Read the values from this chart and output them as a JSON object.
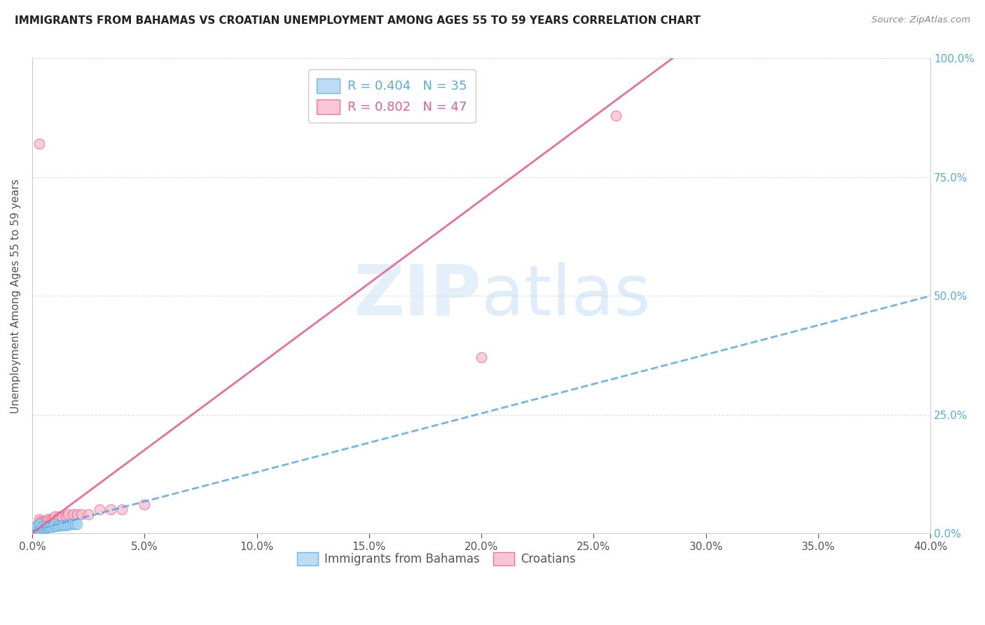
{
  "title": "IMMIGRANTS FROM BAHAMAS VS CROATIAN UNEMPLOYMENT AMONG AGES 55 TO 59 YEARS CORRELATION CHART",
  "source": "Source: ZipAtlas.com",
  "ylabel_label": "Unemployment Among Ages 55 to 59 years",
  "xlim": [
    0.0,
    0.4
  ],
  "ylim": [
    0.0,
    1.0
  ],
  "watermark_zip": "ZIP",
  "watermark_atlas": "atlas",
  "legend_blue_R": "R = 0.404",
  "legend_blue_N": "N = 35",
  "legend_pink_R": "R = 0.802",
  "legend_pink_N": "N = 47",
  "blue_color": "#aad4f0",
  "pink_color": "#f9b8cb",
  "blue_edge_color": "#5aaae0",
  "pink_edge_color": "#e8608a",
  "blue_line_color": "#5aaae0",
  "pink_line_color": "#e8608a",
  "blue_scatter": [
    [
      0.0005,
      0.005
    ],
    [
      0.0008,
      0.008
    ],
    [
      0.001,
      0.01
    ],
    [
      0.001,
      0.005
    ],
    [
      0.0015,
      0.003
    ],
    [
      0.002,
      0.005
    ],
    [
      0.002,
      0.01
    ],
    [
      0.002,
      0.015
    ],
    [
      0.003,
      0.005
    ],
    [
      0.003,
      0.008
    ],
    [
      0.003,
      0.012
    ],
    [
      0.003,
      0.02
    ],
    [
      0.004,
      0.008
    ],
    [
      0.004,
      0.012
    ],
    [
      0.004,
      0.015
    ],
    [
      0.005,
      0.01
    ],
    [
      0.005,
      0.015
    ],
    [
      0.006,
      0.01
    ],
    [
      0.006,
      0.015
    ],
    [
      0.007,
      0.012
    ],
    [
      0.007,
      0.015
    ],
    [
      0.008,
      0.013
    ],
    [
      0.009,
      0.014
    ],
    [
      0.01,
      0.015
    ],
    [
      0.01,
      0.02
    ],
    [
      0.011,
      0.015
    ],
    [
      0.012,
      0.016
    ],
    [
      0.013,
      0.017
    ],
    [
      0.014,
      0.016
    ],
    [
      0.015,
      0.017
    ],
    [
      0.016,
      0.018
    ],
    [
      0.017,
      0.019
    ],
    [
      0.018,
      0.02
    ],
    [
      0.019,
      0.019
    ],
    [
      0.02,
      0.02
    ]
  ],
  "pink_scatter": [
    [
      0.0005,
      0.002
    ],
    [
      0.001,
      0.005
    ],
    [
      0.001,
      0.008
    ],
    [
      0.001,
      0.01
    ],
    [
      0.0015,
      0.005
    ],
    [
      0.002,
      0.008
    ],
    [
      0.002,
      0.01
    ],
    [
      0.002,
      0.015
    ],
    [
      0.003,
      0.005
    ],
    [
      0.003,
      0.01
    ],
    [
      0.003,
      0.015
    ],
    [
      0.003,
      0.02
    ],
    [
      0.003,
      0.025
    ],
    [
      0.003,
      0.03
    ],
    [
      0.004,
      0.01
    ],
    [
      0.004,
      0.015
    ],
    [
      0.004,
      0.02
    ],
    [
      0.004,
      0.025
    ],
    [
      0.005,
      0.015
    ],
    [
      0.005,
      0.02
    ],
    [
      0.005,
      0.025
    ],
    [
      0.006,
      0.02
    ],
    [
      0.006,
      0.025
    ],
    [
      0.007,
      0.025
    ],
    [
      0.007,
      0.03
    ],
    [
      0.008,
      0.025
    ],
    [
      0.008,
      0.03
    ],
    [
      0.009,
      0.03
    ],
    [
      0.01,
      0.03
    ],
    [
      0.01,
      0.035
    ],
    [
      0.012,
      0.03
    ],
    [
      0.012,
      0.035
    ],
    [
      0.013,
      0.035
    ],
    [
      0.015,
      0.035
    ],
    [
      0.016,
      0.04
    ],
    [
      0.018,
      0.04
    ],
    [
      0.02,
      0.04
    ],
    [
      0.022,
      0.04
    ],
    [
      0.025,
      0.04
    ],
    [
      0.03,
      0.05
    ],
    [
      0.035,
      0.05
    ],
    [
      0.04,
      0.05
    ],
    [
      0.05,
      0.06
    ],
    [
      0.003,
      0.82
    ],
    [
      0.14,
      0.91
    ],
    [
      0.26,
      0.88
    ],
    [
      0.2,
      0.37
    ]
  ],
  "blue_line_x": [
    0.0,
    0.4
  ],
  "blue_line_y": [
    0.005,
    0.5
  ],
  "pink_line_x": [
    0.0,
    0.285
  ],
  "pink_line_y": [
    0.0,
    1.0
  ],
  "background_color": "#ffffff",
  "grid_color": "#e0e0e0",
  "xticks": [
    0.0,
    0.05,
    0.1,
    0.15,
    0.2,
    0.25,
    0.3,
    0.35,
    0.4
  ],
  "yticks": [
    0.0,
    0.25,
    0.5,
    0.75,
    1.0
  ]
}
